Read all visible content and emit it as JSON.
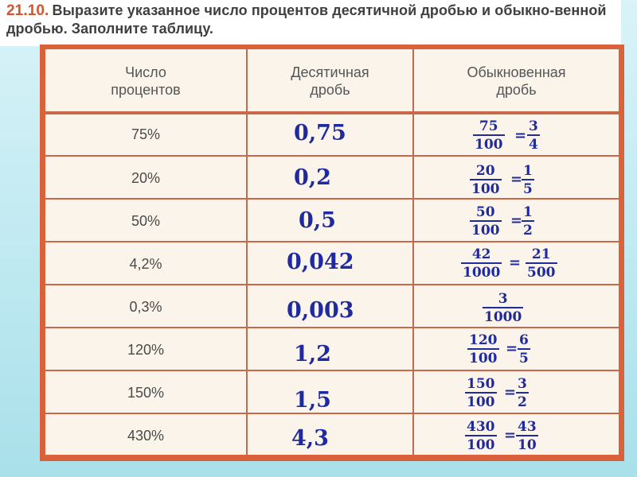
{
  "task": {
    "number": "21.10.",
    "text": "Выразите указанное число процентов десятичной дробью и обыкно-венной дробью. Заполните таблицу."
  },
  "table": {
    "headers": [
      "Число\nпроцентов",
      "Десятичная\nдробь",
      "Обыкновенная\nдробь"
    ],
    "rows": [
      {
        "percent": "75%",
        "decimal": "0,75",
        "frac1": {
          "num": "75",
          "den": "100"
        },
        "frac2": {
          "num": "3",
          "den": "4"
        }
      },
      {
        "percent": "20%",
        "decimal": "0,2",
        "frac1": {
          "num": "20",
          "den": "100"
        },
        "frac2": {
          "num": "1",
          "den": "5"
        }
      },
      {
        "percent": "50%",
        "decimal": "0,5",
        "frac1": {
          "num": "50",
          "den": "100"
        },
        "frac2": {
          "num": "1",
          "den": "2"
        }
      },
      {
        "percent": "4,2%",
        "decimal": "0,042",
        "frac1": {
          "num": "42",
          "den": "1000"
        },
        "frac2": {
          "num": "21",
          "den": "500"
        }
      },
      {
        "percent": "0,3%",
        "decimal": "0,003",
        "frac1": {
          "num": "3",
          "den": "1000"
        },
        "frac2": null
      },
      {
        "percent": "120%",
        "decimal": "1,2",
        "frac1": {
          "num": "120",
          "den": "100"
        },
        "frac2": {
          "num": "6",
          "den": "5"
        }
      },
      {
        "percent": "150%",
        "decimal": "1,5",
        "frac1": {
          "num": "150",
          "den": "100"
        },
        "frac2": {
          "num": "3",
          "den": "2"
        }
      },
      {
        "percent": "430%",
        "decimal": "4,3",
        "frac1": {
          "num": "430",
          "den": "100"
        },
        "frac2": {
          "num": "43",
          "den": "10"
        }
      }
    ],
    "equals_sign": "="
  },
  "colors": {
    "frame": "#d9623b",
    "table_bg": "#fbf4ea",
    "handwriting": "#1f2a9e",
    "task_number": "#d2552b"
  }
}
